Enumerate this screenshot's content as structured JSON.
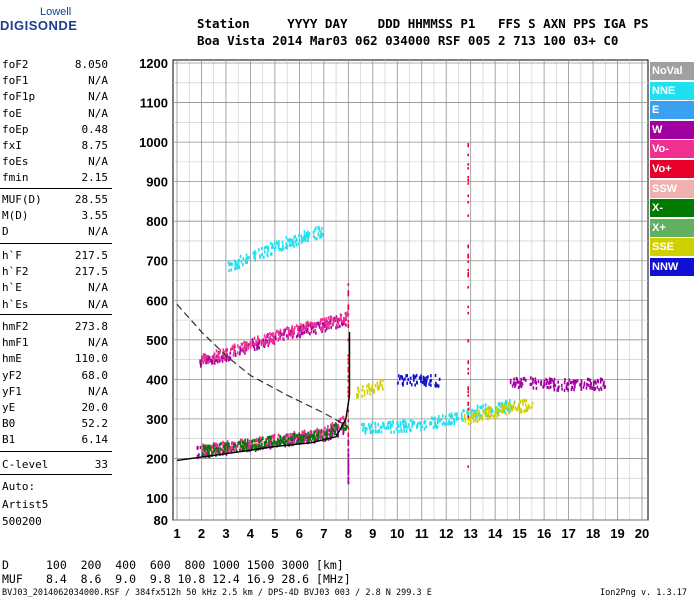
{
  "logo": {
    "line1": "Lowell",
    "line2": "DIGISONDE"
  },
  "header": {
    "row1": "Station     YYYY DAY    DDD HHMMSS P1   FFS S AXN PPS IGA PS",
    "row2": "Boa Vista 2014 Mar03 062 034000 RSF 005 2 713 100 03+ C0"
  },
  "params_group1": [
    {
      "name": "foF2",
      "value": "8.050"
    },
    {
      "name": "foF1",
      "value": "N/A"
    },
    {
      "name": "foF1p",
      "value": "N/A"
    },
    {
      "name": "foE",
      "value": "N/A"
    },
    {
      "name": "foEp",
      "value": "0.48"
    },
    {
      "name": "fxI",
      "value": "8.75"
    },
    {
      "name": "foEs",
      "value": "N/A"
    },
    {
      "name": "fmin",
      "value": "2.15"
    }
  ],
  "params_group2": [
    {
      "name": "MUF(D)",
      "value": "28.55"
    },
    {
      "name": "M(D)",
      "value": "3.55"
    },
    {
      "name": "D",
      "value": "N/A"
    }
  ],
  "params_group3": [
    {
      "name": "h`F",
      "value": "217.5"
    },
    {
      "name": "h`F2",
      "value": "217.5"
    },
    {
      "name": "h`E",
      "value": "N/A"
    },
    {
      "name": "h`Es",
      "value": "N/A"
    }
  ],
  "params_group4": [
    {
      "name": "hmF2",
      "value": "273.8"
    },
    {
      "name": "hmF1",
      "value": "N/A"
    },
    {
      "name": "hmE",
      "value": "110.0"
    },
    {
      "name": "yF2",
      "value": "68.0"
    },
    {
      "name": "yF1",
      "value": "N/A"
    },
    {
      "name": "yE",
      "value": "20.0"
    },
    {
      "name": "B0",
      "value": "52.2"
    },
    {
      "name": "B1",
      "value": "6.14"
    }
  ],
  "clevel": {
    "name": "C-level",
    "value": "33"
  },
  "autoscaling": {
    "line1": "Auto:",
    "line2": "Artist5",
    "line3": "500200"
  },
  "legend": [
    {
      "label": "NoVal",
      "color": "#a0a0a0"
    },
    {
      "label": "NNE",
      "color": "#1fe0f0"
    },
    {
      "label": "E",
      "color": "#3aa0f0"
    },
    {
      "label": "W",
      "color": "#a000a0"
    },
    {
      "label": "Vo-",
      "color": "#f03090"
    },
    {
      "label": "Vo+",
      "color": "#e8002a"
    },
    {
      "label": "SSW",
      "color": "#f0b0b0"
    },
    {
      "label": "X-",
      "color": "#007a00"
    },
    {
      "label": "X+",
      "color": "#60b060"
    },
    {
      "label": "SSE",
      "color": "#d0d000"
    },
    {
      "label": "NNW",
      "color": "#1010d0"
    }
  ],
  "muf_table": {
    "row1_label": "D",
    "row1_values": "100  200  400  600  800 1000 1500 3000 [km]",
    "row2_label": "MUF",
    "row2_values": "8.4  8.6  9.0  9.8 10.8 12.4 16.9 28.6 [MHz]"
  },
  "footer": {
    "left": "BVJ03_2014062034000.RSF / 384fx512h 50 kHz 2.5 km / DPS-4D BVJ03 003 / 2.8 N 299.3 E",
    "right": "Ion2Png v. 1.3.17"
  },
  "chart_data": {
    "type": "scatter",
    "title": "",
    "xlabel": "",
    "ylabel": "",
    "xlim": [
      1,
      20
    ],
    "ylim": [
      80,
      1200
    ],
    "x_ticks": [
      1,
      2,
      3,
      4,
      5,
      6,
      7,
      8,
      9,
      10,
      11,
      12,
      13,
      14,
      15,
      16,
      17,
      18,
      19,
      20
    ],
    "y_ticks": [
      80,
      100,
      200,
      300,
      400,
      500,
      600,
      700,
      800,
      900,
      1000,
      1100,
      1200
    ],
    "grid": true,
    "legend_position": "right",
    "series": [
      {
        "name": "W",
        "color": "#a000a0",
        "traces": [
          {
            "x": [
              1.8,
              3,
              4,
              5,
              6,
              7,
              7.8
            ],
            "y": [
              220,
              228,
              236,
              246,
              255,
              262,
              280
            ]
          },
          {
            "x": [
              1.9,
              3,
              4,
              5,
              6,
              7,
              7.9
            ],
            "y": [
              450,
              465,
              490,
              510,
              525,
              540,
              555
            ]
          },
          {
            "x": [
              14.6,
              15.5,
              16.5,
              17.5,
              18.5
            ],
            "y": [
              395,
              395,
              390,
              390,
              392
            ]
          }
        ]
      },
      {
        "name": "Vo-",
        "color": "#f03090",
        "traces": [
          {
            "x": [
              2,
              3,
              4,
              5,
              6,
              7,
              7.9
            ],
            "y": [
              225,
              233,
              240,
              250,
              258,
              268,
              300
            ]
          },
          {
            "x": [
              2,
              3,
              4,
              5,
              6,
              7,
              8
            ],
            "y": [
              455,
              470,
              495,
              512,
              530,
              545,
              562
            ]
          }
        ]
      },
      {
        "name": "X-",
        "color": "#007a00",
        "traces": [
          {
            "x": [
              2,
              3,
              4,
              5,
              6,
              7,
              7.9
            ],
            "y": [
              222,
              230,
              238,
              246,
              254,
              262,
              290
            ]
          }
        ]
      },
      {
        "name": "NNE",
        "color": "#1fe0f0",
        "traces": [
          {
            "x": [
              3,
              4,
              5,
              6,
              7
            ],
            "y": [
              690,
              710,
              740,
              760,
              780
            ]
          },
          {
            "x": [
              8.5,
              10,
              11,
              12,
              13,
              14,
              14.8
            ],
            "y": [
              280,
              285,
              290,
              300,
              320,
              330,
              340
            ]
          }
        ]
      },
      {
        "name": "SSE",
        "color": "#d0d000",
        "traces": [
          {
            "x": [
              8.3,
              9,
              9.4
            ],
            "y": [
              370,
              380,
              390
            ]
          },
          {
            "x": [
              12.7,
              13.5,
              14.5,
              15.5
            ],
            "y": [
              300,
              315,
              330,
              340
            ]
          }
        ]
      },
      {
        "name": "NNW",
        "color": "#1010d0",
        "traces": [
          {
            "x": [
              10,
              11,
              11.7
            ],
            "y": [
              400,
              402,
              400
            ]
          }
        ]
      }
    ]
  }
}
